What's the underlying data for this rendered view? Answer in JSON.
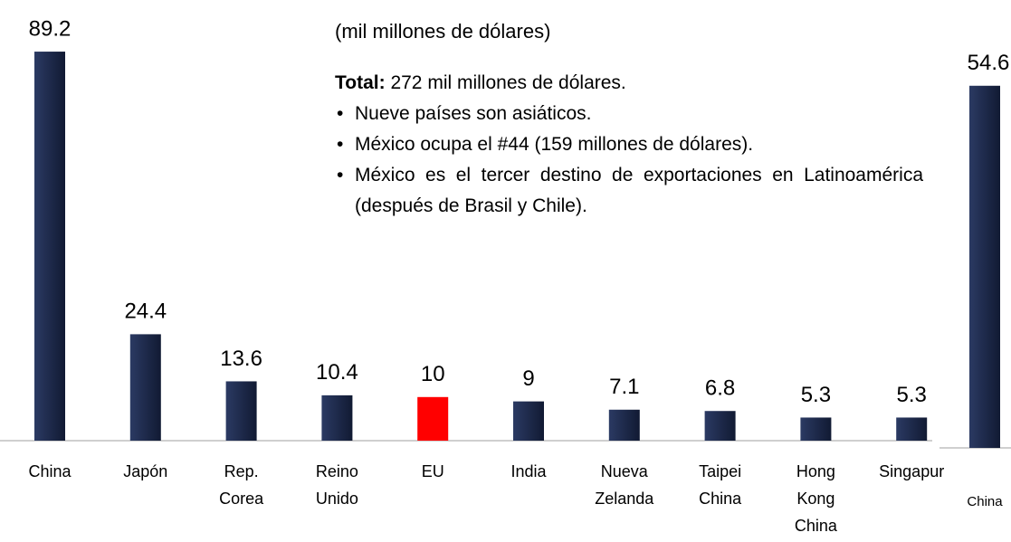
{
  "chart_data": [
    {
      "type": "bar",
      "subtitle": "(mil millones de dólares)",
      "annotations": {
        "total_label": "Total:",
        "total_text": "272 mil millones de dólares.",
        "bullets": [
          "Nueve  países son asiáticos.",
          "México ocupa el #44 (159 millones de dólares).",
          "México es el tercer destino de exportaciones en Latinoamérica (después de Brasil y Chile)."
        ]
      },
      "categories": [
        [
          "China"
        ],
        [
          "Japón"
        ],
        [
          "Rep.",
          "Corea"
        ],
        [
          "Reino",
          "Unido"
        ],
        [
          "EU"
        ],
        [
          "India"
        ],
        [
          "Nueva",
          "Zelanda"
        ],
        [
          "Taipei",
          "China"
        ],
        [
          "Hong",
          "Kong",
          "China"
        ],
        [
          "Singapur"
        ]
      ],
      "values": [
        89.2,
        24.4,
        13.6,
        10.4,
        10,
        9,
        7.1,
        6.8,
        5.3,
        5.3
      ],
      "colors": [
        "#1c2a4f",
        "#1c2a4f",
        "#1c2a4f",
        "#1c2a4f",
        "#ff0000",
        "#1c2a4f",
        "#1c2a4f",
        "#1c2a4f",
        "#1c2a4f",
        "#1c2a4f"
      ]
    },
    {
      "type": "bar",
      "categories": [
        [
          "China"
        ]
      ],
      "values": [
        54.6
      ],
      "colors": [
        "#1c2a4f"
      ]
    }
  ]
}
